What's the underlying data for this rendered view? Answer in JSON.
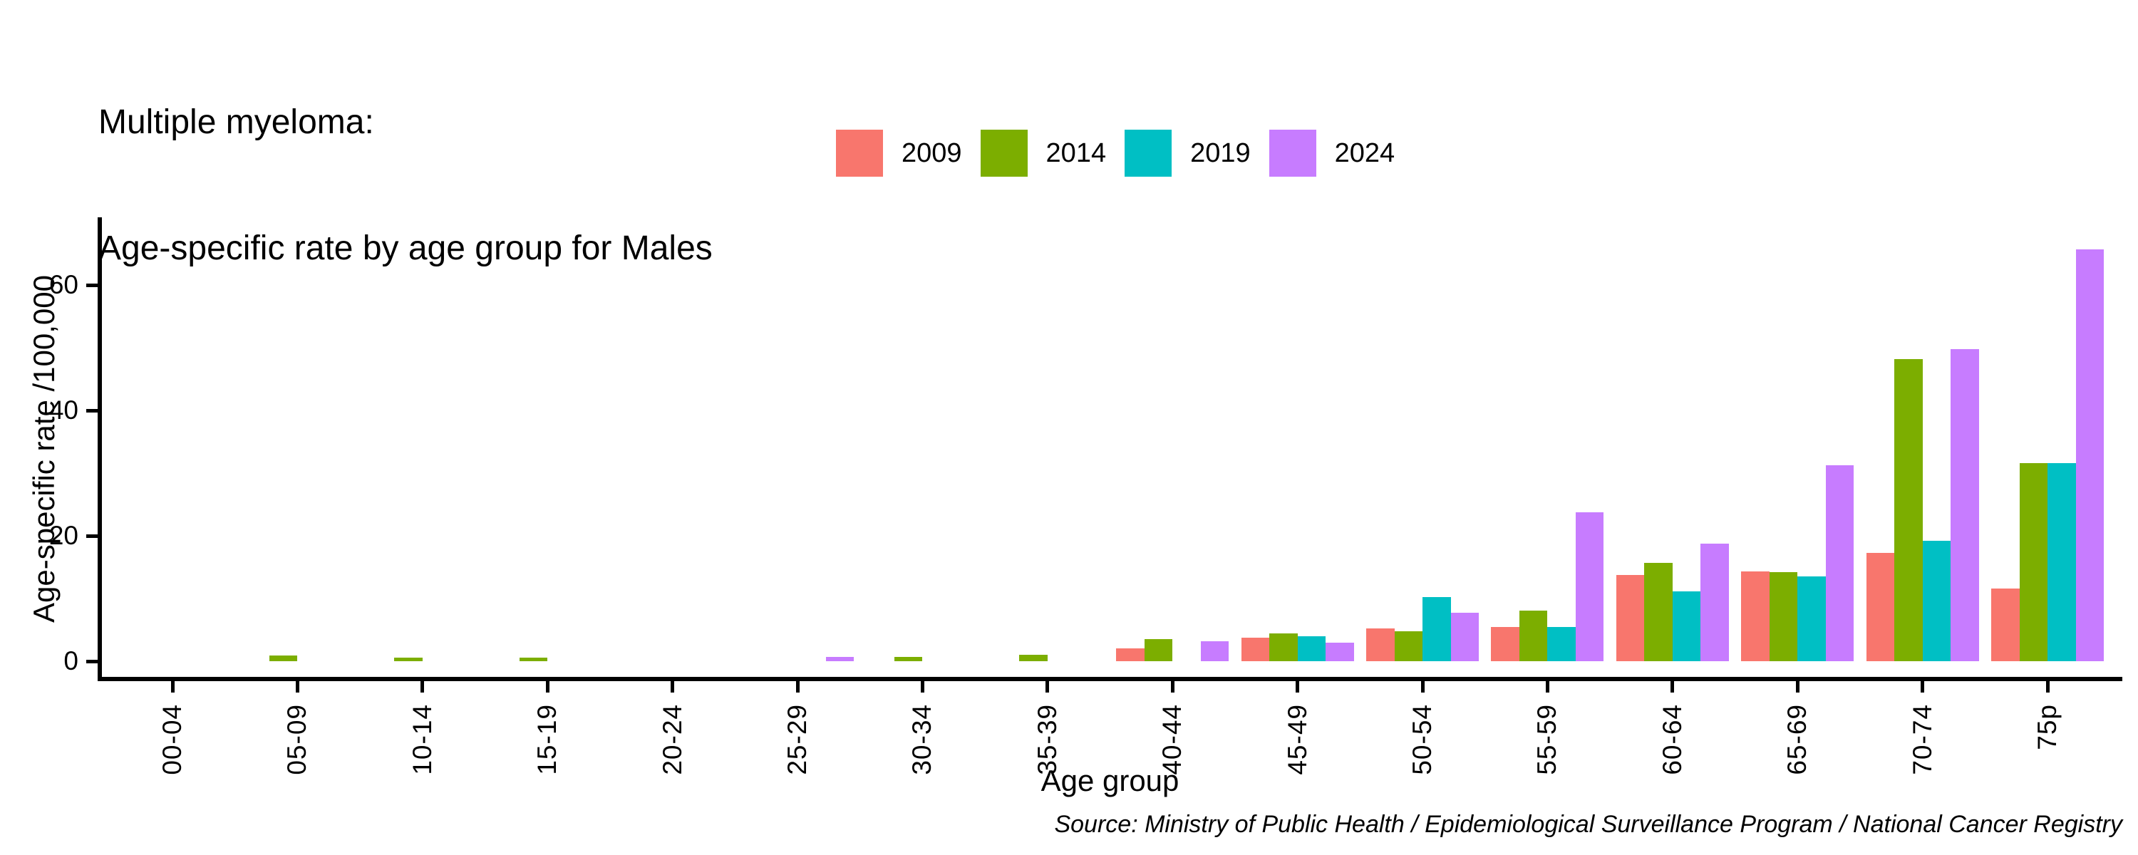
{
  "title": {
    "line1": "Multiple myeloma:",
    "line2": "Age-specific rate by age group for Males"
  },
  "source": "Source: Ministry of Public Health / Epidemiological Surveillance Program / National Cancer Registry",
  "chart_data": {
    "type": "bar",
    "title": "Multiple myeloma: Age-specific rate by age group for Males",
    "xlabel": "Age group",
    "ylabel": "Age-specific rate /100,000",
    "categories": [
      "00-04",
      "05-09",
      "10-14",
      "15-19",
      "20-24",
      "25-29",
      "30-34",
      "35-39",
      "40-44",
      "45-49",
      "50-54",
      "55-59",
      "60-64",
      "65-69",
      "70-74",
      "75p"
    ],
    "series": [
      {
        "name": "2009",
        "color": "#F8766D",
        "values": [
          null,
          null,
          null,
          null,
          null,
          null,
          null,
          null,
          2.0,
          3.7,
          5.2,
          5.4,
          13.7,
          14.3,
          17.3,
          11.6
        ]
      },
      {
        "name": "2014",
        "color": "#7CAE00",
        "values": [
          null,
          0.9,
          0.6,
          0.6,
          null,
          null,
          0.7,
          1.0,
          3.5,
          4.4,
          4.8,
          8.1,
          15.7,
          14.2,
          48.2,
          31.6
        ]
      },
      {
        "name": "2019",
        "color": "#00BFC4",
        "values": [
          null,
          null,
          null,
          null,
          null,
          null,
          null,
          null,
          null,
          4.0,
          10.2,
          5.4,
          11.1,
          13.5,
          19.2,
          31.6
        ]
      },
      {
        "name": "2024",
        "color": "#C77CFF",
        "values": [
          null,
          null,
          null,
          null,
          null,
          0.7,
          null,
          null,
          3.2,
          2.9,
          7.7,
          23.7,
          18.8,
          31.2,
          49.8,
          65.7
        ]
      }
    ],
    "y_ticks": [
      0,
      20,
      40,
      60
    ],
    "ylim": [
      0,
      69
    ],
    "legend_position": "top",
    "grid": false,
    "axis_color": "#000000",
    "background": "#FFFFFF",
    "bar_layout": "dodged"
  }
}
